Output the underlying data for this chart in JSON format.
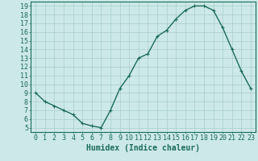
{
  "x": [
    0,
    1,
    2,
    3,
    4,
    5,
    6,
    7,
    8,
    9,
    10,
    11,
    12,
    13,
    14,
    15,
    16,
    17,
    18,
    19,
    20,
    21,
    22,
    23
  ],
  "y": [
    9.0,
    8.0,
    7.5,
    7.0,
    6.5,
    5.5,
    5.2,
    5.0,
    7.0,
    9.5,
    11.0,
    13.0,
    13.5,
    15.5,
    16.2,
    17.5,
    18.5,
    19.0,
    19.0,
    18.5,
    16.5,
    14.0,
    11.5,
    9.5
  ],
  "line_color": "#1a6b5a",
  "marker": "+",
  "marker_size": 3,
  "bg_color": "#cce8e8",
  "grid_color": "#aacece",
  "xlabel": "Humidex (Indice chaleur)",
  "xlim": [
    -0.5,
    23.5
  ],
  "ylim": [
    4.5,
    19.5
  ],
  "xtick_labels": [
    "0",
    "1",
    "2",
    "3",
    "4",
    "5",
    "6",
    "7",
    "8",
    "9",
    "10",
    "11",
    "12",
    "13",
    "14",
    "15",
    "16",
    "17",
    "18",
    "19",
    "20",
    "21",
    "22",
    "23"
  ],
  "ytick_values": [
    5,
    6,
    7,
    8,
    9,
    10,
    11,
    12,
    13,
    14,
    15,
    16,
    17,
    18,
    19
  ],
  "xlabel_fontsize": 7,
  "tick_fontsize": 6,
  "line_width": 1.0
}
